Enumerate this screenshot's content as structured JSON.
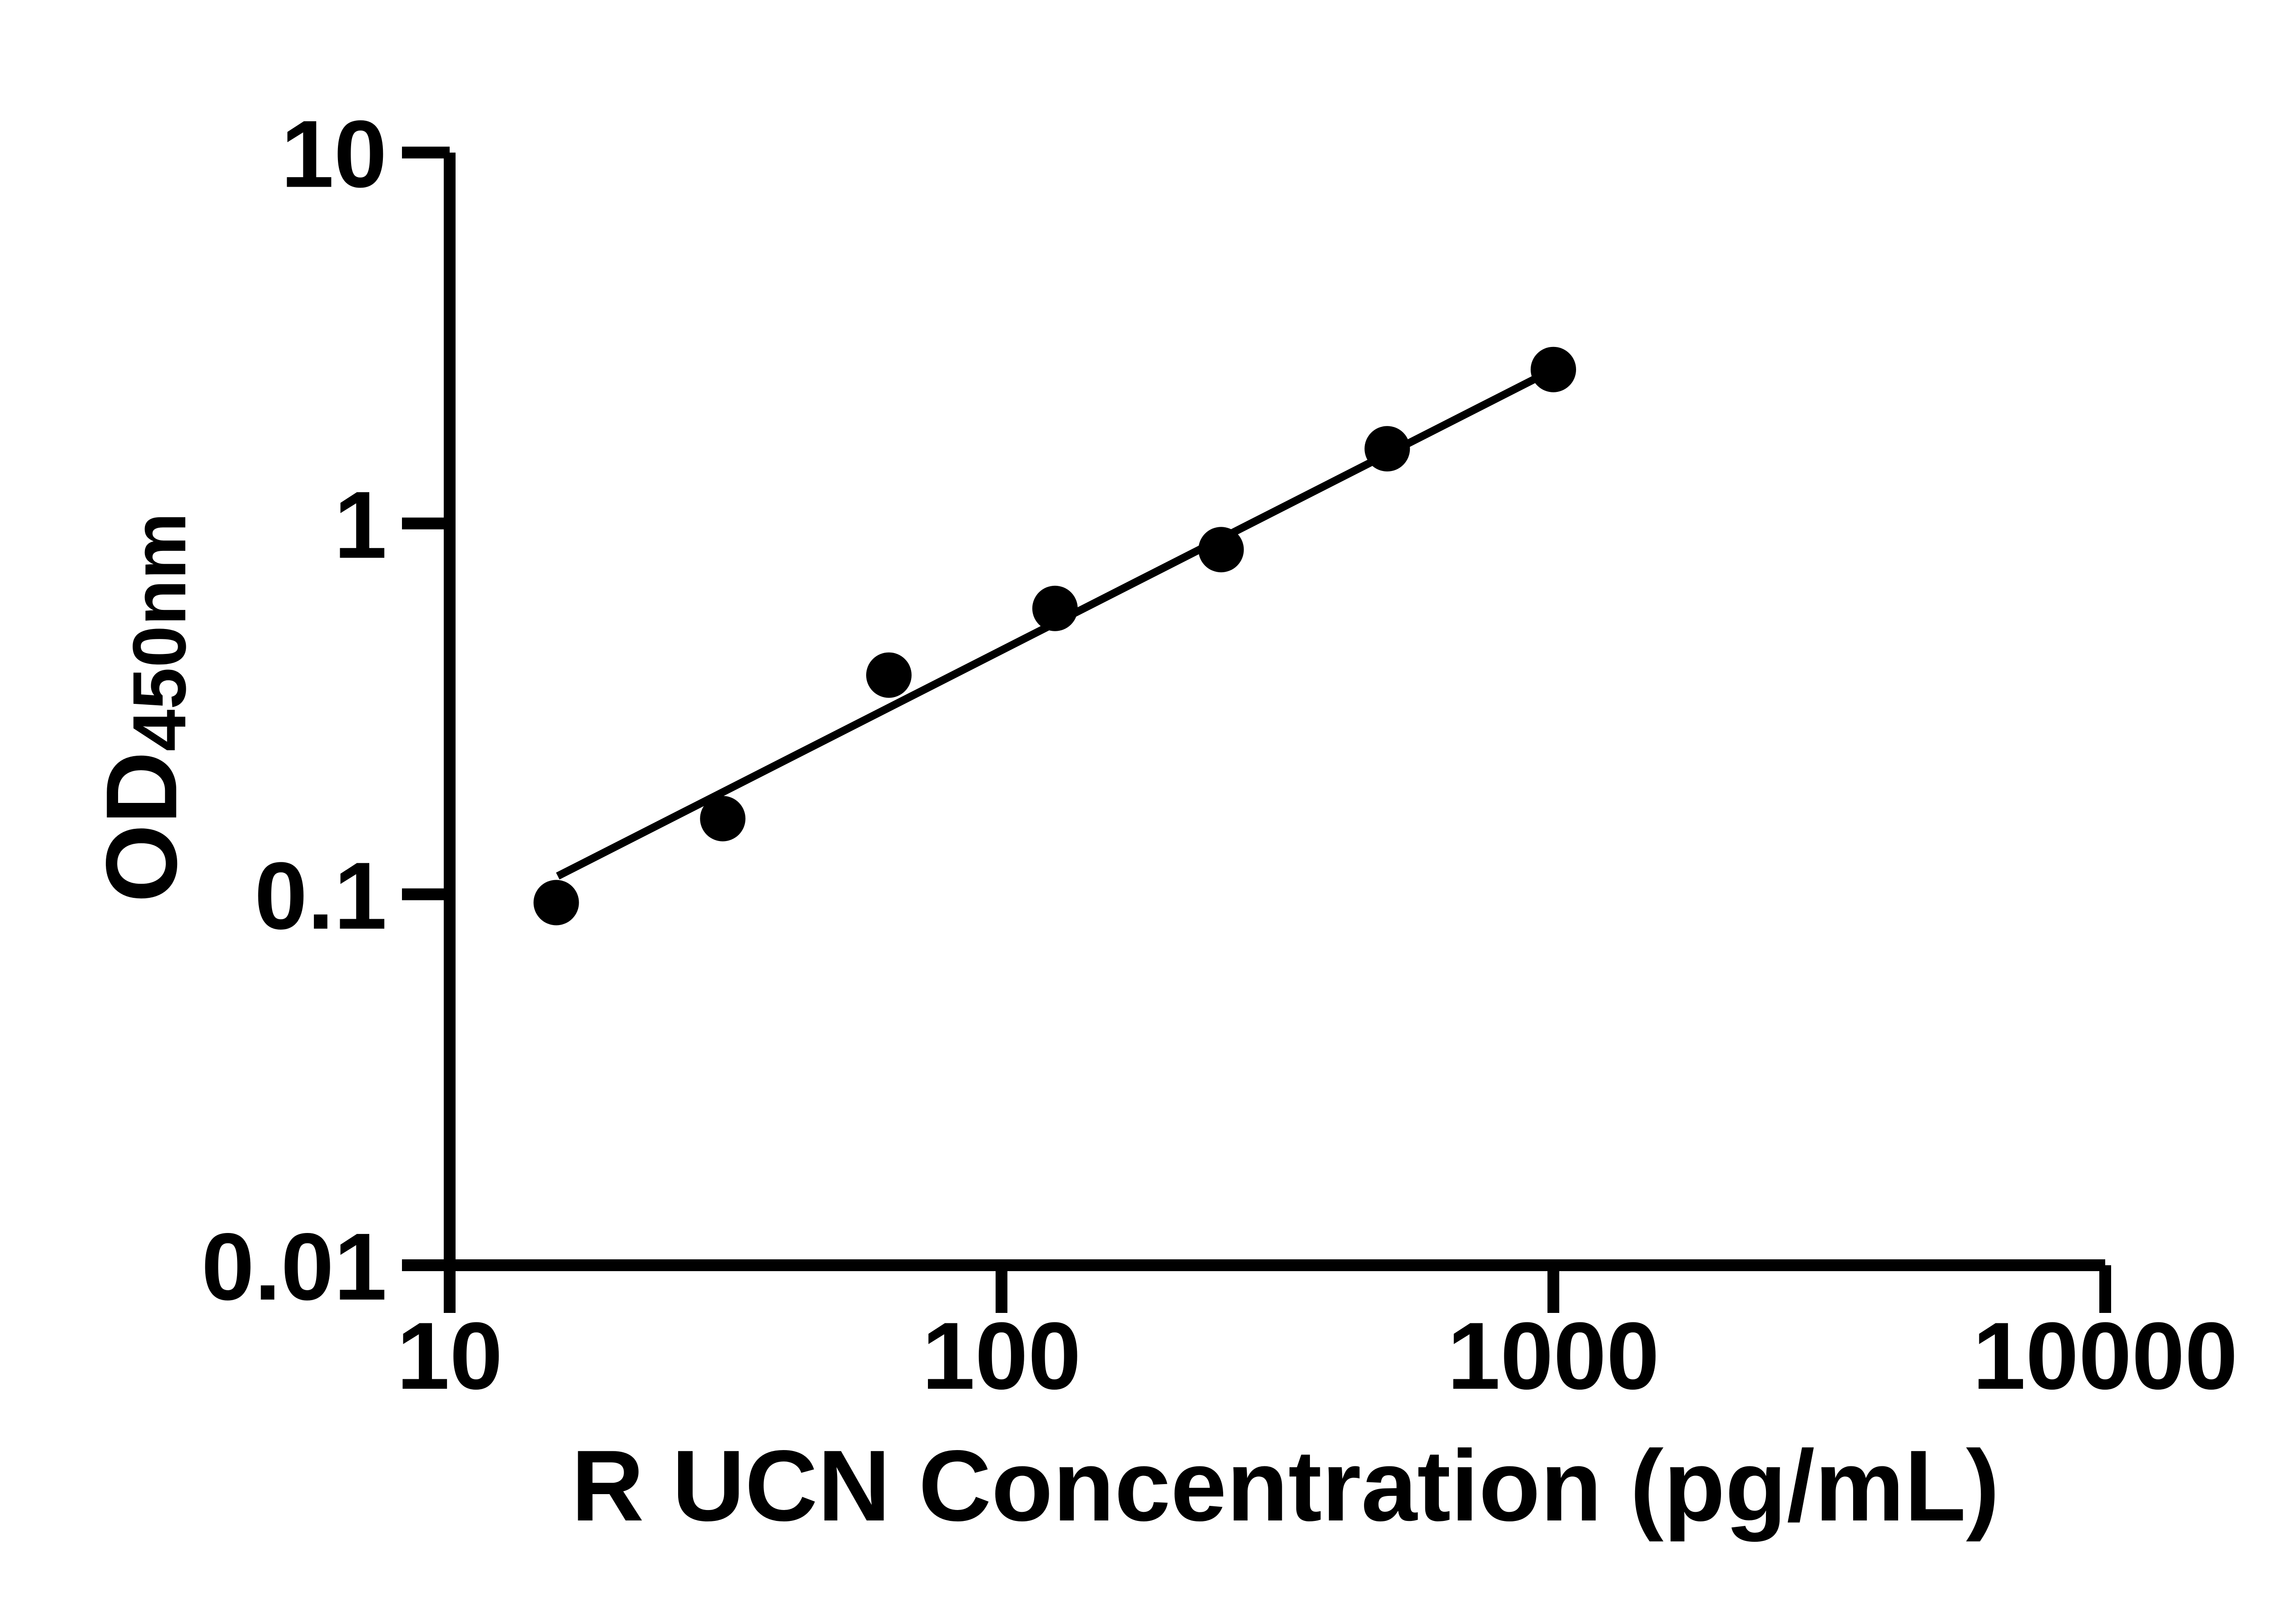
{
  "chart_data": {
    "type": "scatter",
    "xlabel": "R UCN Concentration (pg/mL)",
    "ylabel_main": "OD",
    "ylabel_sub": "450nm",
    "x_scale": "log",
    "y_scale": "log",
    "xlim": [
      10,
      10000
    ],
    "ylim": [
      0.01,
      10
    ],
    "grid": false,
    "legend": "none",
    "x_ticks": [
      {
        "value": 10,
        "label": "10"
      },
      {
        "value": 100,
        "label": "100"
      },
      {
        "value": 1000,
        "label": "1000"
      },
      {
        "value": 10000,
        "label": "10000"
      }
    ],
    "y_ticks": [
      {
        "value": 10,
        "label": "10"
      },
      {
        "value": 1,
        "label": "1"
      },
      {
        "value": 0.1,
        "label": "0.1"
      },
      {
        "value": 0.01,
        "label": "0.01"
      }
    ],
    "points": [
      {
        "conc": 15.6,
        "od": 0.095
      },
      {
        "conc": 31.25,
        "od": 0.16
      },
      {
        "conc": 62.5,
        "od": 0.39
      },
      {
        "conc": 125,
        "od": 0.59
      },
      {
        "conc": 250,
        "od": 0.85
      },
      {
        "conc": 500,
        "od": 1.59
      },
      {
        "conc": 1000,
        "od": 2.6
      }
    ],
    "trendline": {
      "x1": 15.7,
      "y1": 0.112,
      "x2": 1000,
      "y2": 2.6
    },
    "colors": {
      "foreground": "#000000",
      "background": "#ffffff"
    }
  }
}
